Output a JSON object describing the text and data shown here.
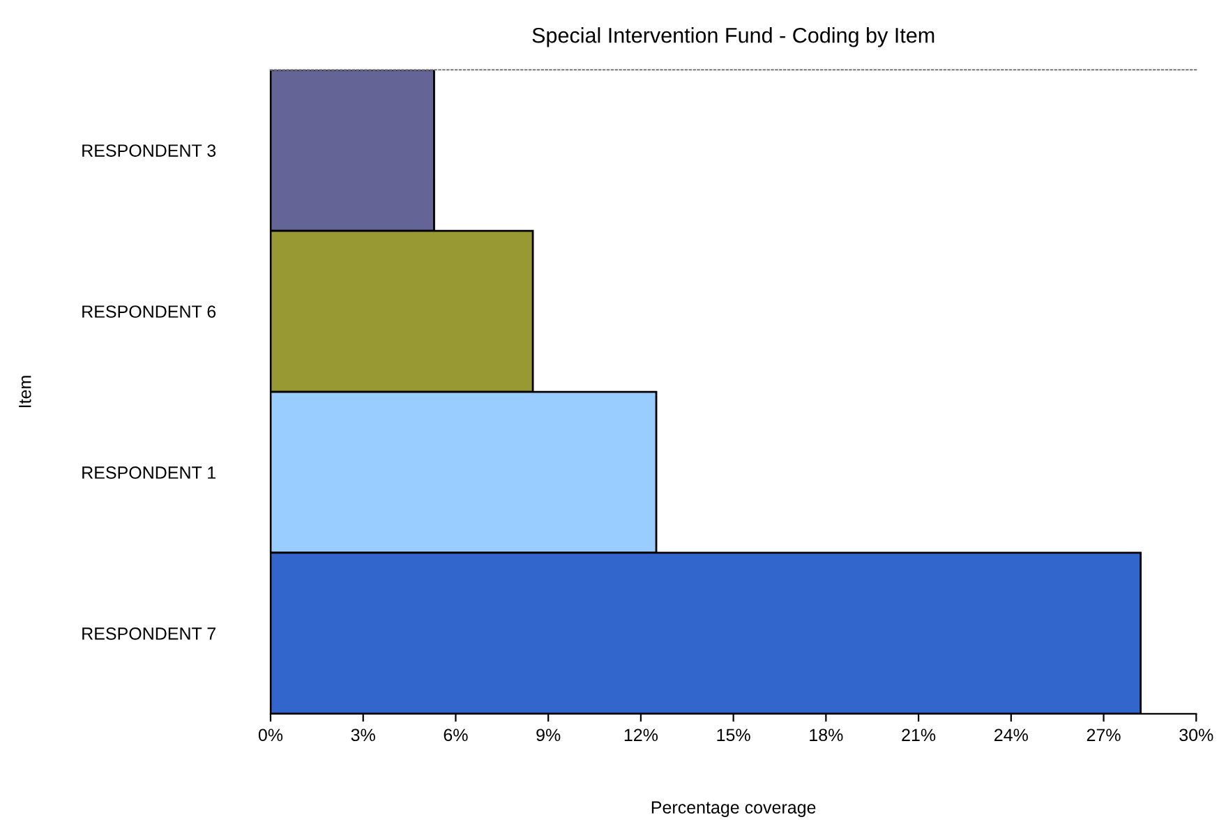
{
  "chart_data": {
    "type": "bar",
    "orientation": "horizontal",
    "title": "Special Intervention Fund - Coding by Item",
    "xlabel": "Percentage coverage",
    "ylabel": "Item",
    "categories": [
      "RESPONDENT 3",
      "RESPONDENT 6",
      "RESPONDENT 1",
      "RESPONDENT 7"
    ],
    "values": [
      5.3,
      8.5,
      12.5,
      28.2
    ],
    "colors": [
      "#646496",
      "#999933",
      "#99ccff",
      "#3366cc"
    ],
    "xlim": [
      0,
      30
    ],
    "xticks": [
      {
        "value": 0,
        "label": "0%"
      },
      {
        "value": 3,
        "label": "3%"
      },
      {
        "value": 6,
        "label": "6%"
      },
      {
        "value": 9,
        "label": "9%"
      },
      {
        "value": 12,
        "label": "12%"
      },
      {
        "value": 15,
        "label": "15%"
      },
      {
        "value": 18,
        "label": "18%"
      },
      {
        "value": 21,
        "label": "21%"
      },
      {
        "value": 24,
        "label": "24%"
      },
      {
        "value": 27,
        "label": "27%"
      },
      {
        "value": 30,
        "label": "30%"
      }
    ],
    "grid": false
  }
}
